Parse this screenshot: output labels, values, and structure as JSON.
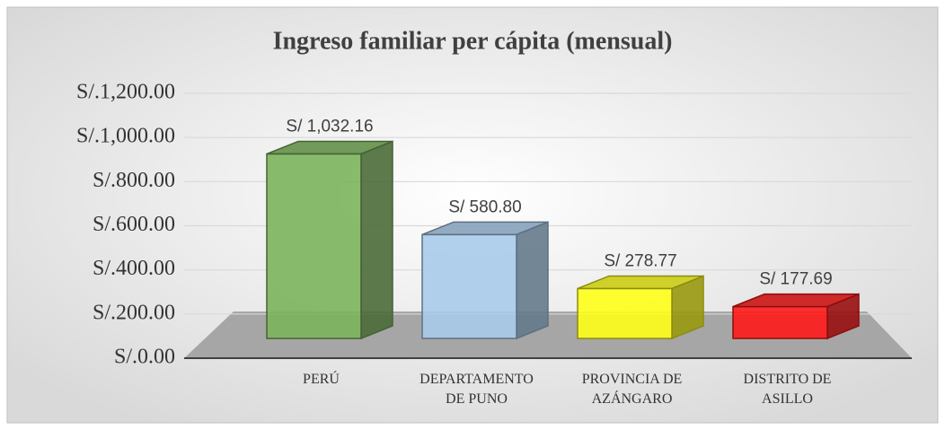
{
  "chart_data": {
    "type": "bar3d",
    "title": "Ingreso familiar per cápita (mensual)",
    "categories": [
      "PERÚ",
      "DEPARTAMENTO DE PUNO",
      "PROVINCIA DE AZÁNGARO",
      "DISTRITO DE ASILLO"
    ],
    "values": [
      1032.16,
      580.8,
      278.77,
      177.69
    ],
    "value_labels": [
      "S/ 1,032.16",
      "S/ 580.80",
      "S/ 278.77",
      "S/ 177.69"
    ],
    "colors": [
      "#7cb45c",
      "#a9cbea",
      "#ffff1a",
      "#ff1a1a"
    ],
    "ylim": [
      0,
      1200
    ],
    "yticks": [
      {
        "value": 0,
        "label": "S/.0.00"
      },
      {
        "value": 200,
        "label": "S/.200.00"
      },
      {
        "value": 400,
        "label": "S/.400.00"
      },
      {
        "value": 600,
        "label": "S/.600.00"
      },
      {
        "value": 800,
        "label": "S/.800.00"
      },
      {
        "value": 1000,
        "label": "S/.1,000.00"
      },
      {
        "value": 1200,
        "label": "S/.1,200.00"
      }
    ],
    "grid": true
  }
}
